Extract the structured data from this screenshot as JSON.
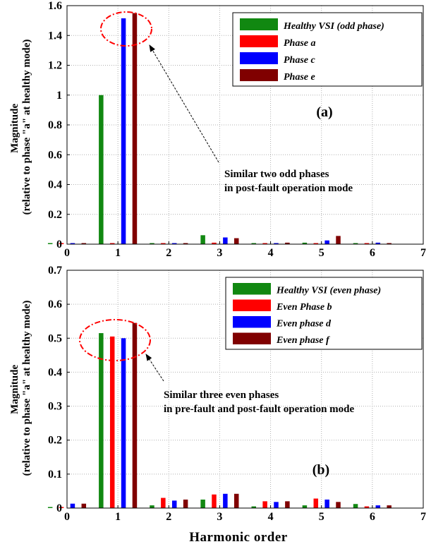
{
  "colors": {
    "healthy": "#118811",
    "red": "#ff0000",
    "blue": "#0000ff",
    "darkred": "#800000",
    "ellipse": "#ff0000"
  },
  "chart_data": [
    {
      "type": "bar",
      "panel_label": "(a)",
      "xlabel": "",
      "ylabel_line1": "Magnitude",
      "ylabel_line2": "(relative to phase \"a\" at healthy mode)",
      "xlim": [
        0,
        7
      ],
      "ylim": [
        0,
        1.6
      ],
      "xticks": [
        "0",
        "1",
        "2",
        "3",
        "4",
        "5",
        "6",
        "7"
      ],
      "yticks": [
        "0",
        "0.2",
        "0.4",
        "0.6",
        "0.8",
        "1",
        "1.2",
        "1.4",
        "1.6"
      ],
      "grid": true,
      "legend_position": "top-right",
      "categories": [
        0,
        1,
        2,
        3,
        4,
        5,
        6
      ],
      "series": [
        {
          "name": "Healthy VSI (odd phase)",
          "color": "healthy",
          "values": [
            0.005,
            1.0,
            0.005,
            0.06,
            0.005,
            0.01,
            0.005
          ]
        },
        {
          "name": "Phase a",
          "color": "red",
          "values": [
            0.005,
            0.005,
            0.005,
            0.01,
            0.005,
            0.005,
            0.005
          ]
        },
        {
          "name": "Phase c",
          "color": "blue",
          "values": [
            0.005,
            1.515,
            0.005,
            0.045,
            0.005,
            0.025,
            0.01
          ]
        },
        {
          "name": "Phase e",
          "color": "darkred",
          "values": [
            0.005,
            1.55,
            0.005,
            0.04,
            0.01,
            0.055,
            0.005
          ]
        }
      ],
      "annotation_lines": [
        "Similar two odd phases",
        "in post-fault operation mode"
      ]
    },
    {
      "type": "bar",
      "panel_label": "(b)",
      "xlabel": "Harmonic order",
      "ylabel_line1": "Magnitude",
      "ylabel_line2": "(relative to phase \"a\" at healthy mode)",
      "xlim": [
        0,
        7
      ],
      "ylim": [
        0,
        0.7
      ],
      "xticks": [
        "0",
        "1",
        "2",
        "3",
        "4",
        "5",
        "6",
        "7"
      ],
      "yticks": [
        "0",
        "0.1",
        "0.2",
        "0.3",
        "0.4",
        "0.5",
        "0.6",
        "0.7"
      ],
      "grid": true,
      "legend_position": "top-right",
      "categories": [
        0,
        1,
        2,
        3,
        4,
        5,
        6
      ],
      "series": [
        {
          "name": "Healthy VSI (even phase)",
          "color": "healthy",
          "values": [
            0.0,
            0.515,
            0.008,
            0.025,
            0.005,
            0.008,
            0.012
          ]
        },
        {
          "name": "Even Phase b",
          "color": "red",
          "values": [
            0.0,
            0.505,
            0.03,
            0.04,
            0.02,
            0.028,
            0.005
          ]
        },
        {
          "name": "Even phase d",
          "color": "blue",
          "values": [
            0.013,
            0.5,
            0.022,
            0.042,
            0.018,
            0.025,
            0.008
          ]
        },
        {
          "name": "Even phase f",
          "color": "darkred",
          "values": [
            0.013,
            0.545,
            0.025,
            0.042,
            0.02,
            0.018,
            0.008
          ]
        }
      ],
      "annotation_lines": [
        "Similar three even phases",
        "in pre-fault and post-fault operation mode"
      ]
    }
  ]
}
